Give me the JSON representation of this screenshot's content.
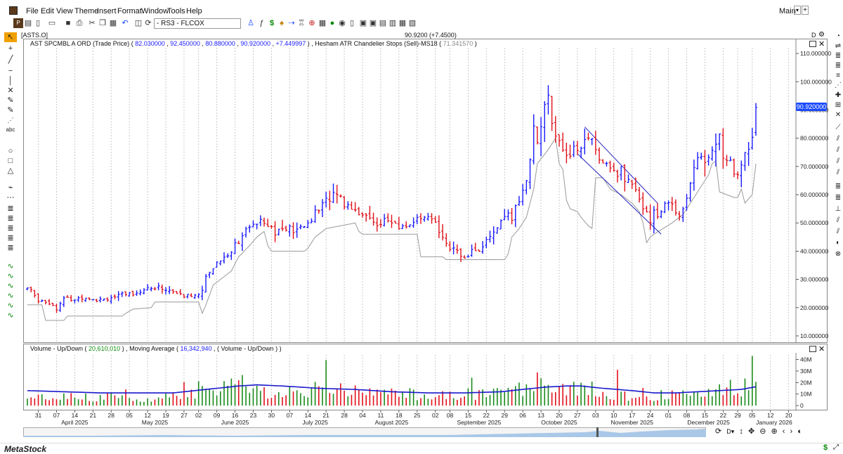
{
  "menu": [
    "File",
    "Edit",
    "View",
    "Theme",
    "Insert",
    "Format",
    "Window",
    "Tools",
    "Help"
  ],
  "workspace": {
    "label": "Main"
  },
  "toolbar": {
    "layout_combo": "- RS3 - FLCOX"
  },
  "symbol_box": "[ASTS.O]",
  "quote_center": "90.9200 (+7.4500)",
  "period_flag": "D",
  "price_panel": {
    "title": "AST SPCMBL A ORD (Trade Price)",
    "ohlc": [
      "82.030000",
      "92.450000",
      "80.880000",
      "90.920000"
    ],
    "change": "+7.449997",
    "indicator": "Hesham ATR Chandelier Stops (Sell)-MS18",
    "indicator_value": "71.341570",
    "last_price_label": "90.920000"
  },
  "volume_panel": {
    "title": "Volume - Up/Down",
    "volume_value": "20,610,010",
    "ma_title": "Moving Average",
    "ma_value": "16,342,940",
    "ma_source": "( Volume - Up/Down )"
  },
  "status": {
    "brand": "MetaStock"
  },
  "chart_data": {
    "type": "bar",
    "subtype": "ohlc-with-stop-line-and-volume",
    "colors": {
      "up": "#1a1aff",
      "down": "#e0101a",
      "stop": "#9a9a9a",
      "vol_up": "#1a8a1a",
      "vol_down": "#e0101a",
      "ma": "#1a1acc"
    },
    "price_axis": {
      "range": [
        8,
        114
      ],
      "ticks": [
        "110.000000",
        "100.000000",
        "90.000000",
        "80.000000",
        "70.000000",
        "60.000000",
        "50.000000",
        "40.000000",
        "30.000000",
        "20.000000",
        "10.000000"
      ]
    },
    "volume_axis": {
      "range": [
        -3,
        44
      ],
      "ticks": [
        "40M",
        "30M",
        "20M",
        "10M",
        "0"
      ],
      "tick_values": [
        40,
        30,
        20,
        10,
        0
      ]
    },
    "x_ticks": [
      {
        "label": "31",
        "i": 3
      },
      {
        "label": "07",
        "i": 8
      },
      {
        "label": "14",
        "i": 13
      },
      {
        "label": "21",
        "i": 18
      },
      {
        "label": "28",
        "i": 23
      },
      {
        "label": "05",
        "i": 28
      },
      {
        "label": "12",
        "i": 33
      },
      {
        "label": "19",
        "i": 38
      },
      {
        "label": "27",
        "i": 43
      },
      {
        "label": "02",
        "i": 47
      },
      {
        "label": "09",
        "i": 52
      },
      {
        "label": "16",
        "i": 57
      },
      {
        "label": "23",
        "i": 62
      },
      {
        "label": "30",
        "i": 67
      },
      {
        "label": "07",
        "i": 72
      },
      {
        "label": "14",
        "i": 77
      },
      {
        "label": "21",
        "i": 82
      },
      {
        "label": "28",
        "i": 87
      },
      {
        "label": "04",
        "i": 92
      },
      {
        "label": "11",
        "i": 97
      },
      {
        "label": "18",
        "i": 102
      },
      {
        "label": "25",
        "i": 107
      },
      {
        "label": "02",
        "i": 112
      },
      {
        "label": "08",
        "i": 116
      },
      {
        "label": "15",
        "i": 121
      },
      {
        "label": "22",
        "i": 126
      },
      {
        "label": "29",
        "i": 131
      },
      {
        "label": "06",
        "i": 136
      },
      {
        "label": "13",
        "i": 141
      },
      {
        "label": "20",
        "i": 146
      },
      {
        "label": "27",
        "i": 151
      },
      {
        "label": "03",
        "i": 156
      },
      {
        "label": "10",
        "i": 161
      },
      {
        "label": "17",
        "i": 166
      },
      {
        "label": "24",
        "i": 171
      },
      {
        "label": "01",
        "i": 176
      },
      {
        "label": "08",
        "i": 181
      },
      {
        "label": "15",
        "i": 186
      },
      {
        "label": "22",
        "i": 191
      },
      {
        "label": "29",
        "i": 195
      },
      {
        "label": "05",
        "i": 199
      },
      {
        "label": "12",
        "i": 204
      },
      {
        "label": "20",
        "i": 209
      }
    ],
    "months": [
      {
        "label": "April 2025",
        "i": 13
      },
      {
        "label": "May 2025",
        "i": 35
      },
      {
        "label": "June 2025",
        "i": 57
      },
      {
        "label": "July 2025",
        "i": 79
      },
      {
        "label": "August 2025",
        "i": 100
      },
      {
        "label": "September 2025",
        "i": 124
      },
      {
        "label": "October 2025",
        "i": 146
      },
      {
        "label": "November 2025",
        "i": 166
      },
      {
        "label": "December 2025",
        "i": 187
      },
      {
        "label": "January 2026",
        "i": 205
      }
    ],
    "last_bar_index": 200,
    "anchors_close": [
      [
        0,
        27
      ],
      [
        3,
        23
      ],
      [
        6,
        22
      ],
      [
        8,
        20
      ],
      [
        10,
        23
      ],
      [
        13,
        23
      ],
      [
        16,
        24
      ],
      [
        19,
        23
      ],
      [
        22,
        23.5
      ],
      [
        25,
        24
      ],
      [
        28,
        25
      ],
      [
        31,
        26
      ],
      [
        34,
        27
      ],
      [
        37,
        27
      ],
      [
        40,
        25.5
      ],
      [
        43,
        24
      ],
      [
        46,
        24.5
      ],
      [
        48,
        27
      ],
      [
        50,
        33
      ],
      [
        52,
        36
      ],
      [
        55,
        39
      ],
      [
        58,
        44
      ],
      [
        61,
        48
      ],
      [
        64,
        52
      ],
      [
        66,
        50
      ],
      [
        68,
        47
      ],
      [
        71,
        48
      ],
      [
        74,
        47
      ],
      [
        77,
        50
      ],
      [
        80,
        55
      ],
      [
        83,
        59
      ],
      [
        85,
        61
      ],
      [
        87,
        57
      ],
      [
        90,
        55
      ],
      [
        93,
        52
      ],
      [
        96,
        50
      ],
      [
        99,
        51
      ],
      [
        102,
        48
      ],
      [
        105,
        50
      ],
      [
        108,
        51
      ],
      [
        111,
        51
      ],
      [
        114,
        46
      ],
      [
        116,
        41
      ],
      [
        119,
        38
      ],
      [
        122,
        40
      ],
      [
        125,
        41
      ],
      [
        128,
        47
      ],
      [
        131,
        51
      ],
      [
        133,
        52
      ],
      [
        135,
        58
      ],
      [
        137,
        66
      ],
      [
        138,
        72
      ],
      [
        139,
        85
      ],
      [
        140,
        80
      ],
      [
        141,
        84
      ],
      [
        142,
        90
      ],
      [
        143,
        96
      ],
      [
        144,
        87
      ],
      [
        145,
        82
      ],
      [
        146,
        78
      ],
      [
        147,
        77
      ],
      [
        148,
        72
      ],
      [
        150,
        76
      ],
      [
        152,
        78
      ],
      [
        154,
        79
      ],
      [
        156,
        78
      ],
      [
        157,
        72
      ],
      [
        159,
        71
      ],
      [
        161,
        67
      ],
      [
        163,
        69
      ],
      [
        165,
        64
      ],
      [
        167,
        60
      ],
      [
        169,
        57
      ],
      [
        171,
        52
      ],
      [
        173,
        53
      ],
      [
        175,
        56
      ],
      [
        177,
        57
      ],
      [
        179,
        53
      ],
      [
        181,
        60
      ],
      [
        183,
        70
      ],
      [
        185,
        74
      ],
      [
        187,
        72
      ],
      [
        189,
        79
      ],
      [
        190,
        83
      ],
      [
        191,
        72
      ],
      [
        193,
        71
      ],
      [
        194,
        66
      ],
      [
        196,
        70
      ],
      [
        198,
        78
      ],
      [
        199,
        80
      ],
      [
        200,
        90.92
      ]
    ],
    "anchors_stop": [
      [
        0,
        21
      ],
      [
        4,
        21
      ],
      [
        5,
        15.5
      ],
      [
        10,
        15.5
      ],
      [
        11,
        17
      ],
      [
        26,
        17
      ],
      [
        27,
        18
      ],
      [
        29,
        19.5
      ],
      [
        34,
        20
      ],
      [
        35,
        22
      ],
      [
        47,
        22
      ],
      [
        48,
        18
      ],
      [
        49,
        21
      ],
      [
        51,
        28
      ],
      [
        53,
        30
      ],
      [
        56,
        33
      ],
      [
        58,
        38
      ],
      [
        61,
        42
      ],
      [
        63,
        45
      ],
      [
        65,
        47
      ],
      [
        66,
        42
      ],
      [
        67,
        40
      ],
      [
        76,
        40
      ],
      [
        77,
        41
      ],
      [
        79,
        45
      ],
      [
        82,
        48
      ],
      [
        86,
        49
      ],
      [
        90,
        50
      ],
      [
        91,
        47
      ],
      [
        92,
        46
      ],
      [
        107,
        46
      ],
      [
        108,
        38
      ],
      [
        114,
        38
      ],
      [
        115,
        37
      ],
      [
        131,
        37
      ],
      [
        132,
        39
      ],
      [
        133,
        45
      ],
      [
        135,
        48
      ],
      [
        137,
        52
      ],
      [
        139,
        62
      ],
      [
        140,
        71
      ],
      [
        143,
        76
      ],
      [
        145,
        80
      ],
      [
        146,
        71
      ],
      [
        147,
        69
      ],
      [
        148,
        58
      ],
      [
        149,
        55
      ],
      [
        151,
        54
      ],
      [
        152,
        52
      ],
      [
        154,
        49
      ],
      [
        155,
        48
      ],
      [
        156,
        66
      ],
      [
        158,
        66
      ],
      [
        160,
        62
      ],
      [
        163,
        60
      ],
      [
        166,
        57
      ],
      [
        168,
        54
      ],
      [
        169,
        50
      ],
      [
        170,
        43
      ],
      [
        171,
        45
      ],
      [
        172,
        46
      ],
      [
        177,
        50
      ],
      [
        179,
        52
      ],
      [
        180,
        53
      ],
      [
        182,
        57
      ],
      [
        184,
        61
      ],
      [
        186,
        65
      ],
      [
        187,
        67
      ],
      [
        188,
        71
      ],
      [
        189,
        72
      ],
      [
        190,
        61
      ],
      [
        194,
        59
      ],
      [
        195,
        59
      ],
      [
        196,
        62
      ],
      [
        197,
        57
      ],
      [
        199,
        60
      ],
      [
        200,
        71
      ]
    ],
    "anchors_volume": [
      [
        0,
        6
      ],
      [
        20,
        8
      ],
      [
        30,
        6
      ],
      [
        40,
        9
      ],
      [
        47,
        14
      ],
      [
        50,
        12
      ],
      [
        55,
        18
      ],
      [
        58,
        22
      ],
      [
        62,
        16
      ],
      [
        67,
        12
      ],
      [
        72,
        11
      ],
      [
        78,
        14
      ],
      [
        84,
        15
      ],
      [
        90,
        13
      ],
      [
        96,
        11
      ],
      [
        100,
        10
      ],
      [
        106,
        9
      ],
      [
        112,
        10
      ],
      [
        116,
        9
      ],
      [
        122,
        10
      ],
      [
        128,
        11
      ],
      [
        132,
        12
      ],
      [
        136,
        14
      ],
      [
        139,
        22
      ],
      [
        142,
        18
      ],
      [
        146,
        20
      ],
      [
        150,
        18
      ],
      [
        154,
        16
      ],
      [
        158,
        11
      ],
      [
        163,
        9
      ],
      [
        168,
        8
      ],
      [
        173,
        9
      ],
      [
        178,
        10
      ],
      [
        183,
        12
      ],
      [
        187,
        13
      ],
      [
        191,
        14
      ],
      [
        195,
        15
      ],
      [
        199,
        16
      ],
      [
        200,
        20.6
      ]
    ],
    "anchors_ma": [
      [
        0,
        13
      ],
      [
        20,
        11
      ],
      [
        40,
        11
      ],
      [
        46,
        13
      ],
      [
        52,
        15
      ],
      [
        58,
        17
      ],
      [
        63,
        18
      ],
      [
        70,
        17
      ],
      [
        80,
        15
      ],
      [
        90,
        14
      ],
      [
        100,
        12
      ],
      [
        110,
        11
      ],
      [
        120,
        11
      ],
      [
        130,
        12
      ],
      [
        136,
        14
      ],
      [
        142,
        16
      ],
      [
        148,
        17
      ],
      [
        152,
        17
      ],
      [
        158,
        15
      ],
      [
        166,
        13
      ],
      [
        172,
        11
      ],
      [
        178,
        11
      ],
      [
        184,
        12
      ],
      [
        190,
        13
      ],
      [
        196,
        14
      ],
      [
        200,
        16.34
      ]
    ]
  }
}
